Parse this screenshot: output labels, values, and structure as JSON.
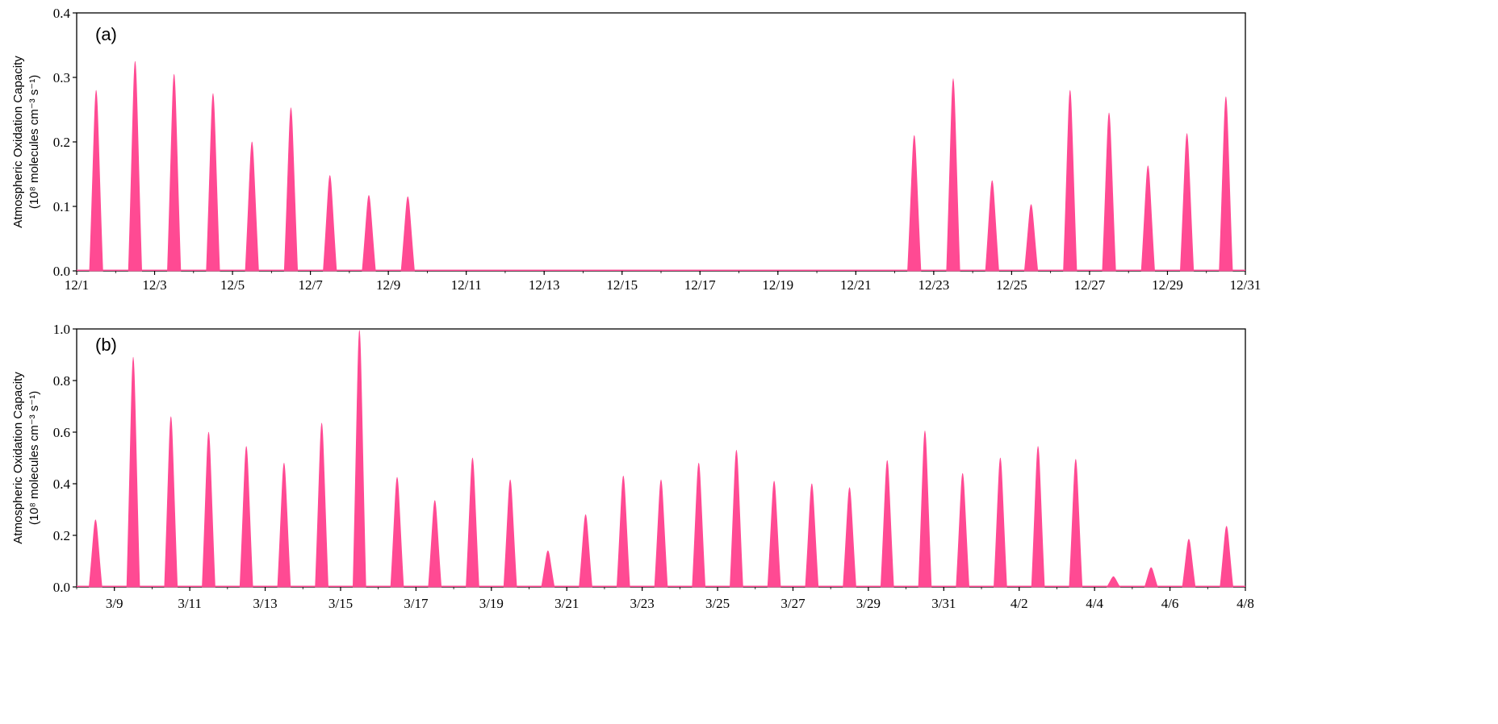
{
  "chart_data": [
    {
      "type": "area",
      "panel_label": "(a)",
      "ylabel_line1": "Atmospheric Oxidation Capacity",
      "ylabel_line2": "(10⁸ molecules cm⁻³ s⁻¹)",
      "ylim": [
        0,
        0.4
      ],
      "yticks": [
        "0.0",
        "0.1",
        "0.2",
        "0.3",
        "0.4"
      ],
      "xlim_days": [
        1,
        31
      ],
      "xticks": [
        "12/1",
        "12/3",
        "12/5",
        "12/7",
        "12/9",
        "12/11",
        "12/13",
        "12/15",
        "12/17",
        "12/19",
        "12/21",
        "12/23",
        "12/25",
        "12/27",
        "12/29",
        "12/31"
      ],
      "color": "#FF4A93",
      "daily_peaks": [
        {
          "date": "12/1",
          "peak": 0.28
        },
        {
          "date": "12/2",
          "peak": 0.325
        },
        {
          "date": "12/3",
          "peak": 0.305
        },
        {
          "date": "12/4",
          "peak": 0.275
        },
        {
          "date": "12/5",
          "peak": 0.2
        },
        {
          "date": "12/6",
          "peak": 0.253
        },
        {
          "date": "12/7",
          "peak": 0.148
        },
        {
          "date": "12/8",
          "peak": 0.117
        },
        {
          "date": "12/9",
          "peak": 0.115
        },
        {
          "date": "12/22",
          "peak": 0.21
        },
        {
          "date": "12/23",
          "peak": 0.298
        },
        {
          "date": "12/24",
          "peak": 0.14
        },
        {
          "date": "12/25",
          "peak": 0.103
        },
        {
          "date": "12/26",
          "peak": 0.28
        },
        {
          "date": "12/27",
          "peak": 0.245
        },
        {
          "date": "12/28",
          "peak": 0.163
        },
        {
          "date": "12/29",
          "peak": 0.213
        },
        {
          "date": "12/30",
          "peak": 0.27
        }
      ]
    },
    {
      "type": "area",
      "panel_label": "(b)",
      "ylabel_line1": "Atmospheric Oxidation Capacity",
      "ylabel_line2": "(10⁸ molecules cm⁻³ s⁻¹)",
      "ylim": [
        0,
        1.0
      ],
      "yticks": [
        "0.0",
        "0.2",
        "0.4",
        "0.6",
        "0.8",
        "1.0"
      ],
      "xlim_days": [
        8,
        39
      ],
      "xticks": [
        "3/9",
        "3/11",
        "3/13",
        "3/15",
        "3/17",
        "3/19",
        "3/21",
        "3/23",
        "3/25",
        "3/27",
        "3/29",
        "3/31",
        "4/2",
        "4/4",
        "4/6",
        "4/8"
      ],
      "color": "#FF4A93",
      "daily_peaks": [
        {
          "date": "3/8",
          "peak": 0.26
        },
        {
          "date": "3/9",
          "peak": 0.89
        },
        {
          "date": "3/10",
          "peak": 0.66
        },
        {
          "date": "3/11",
          "peak": 0.6
        },
        {
          "date": "3/12",
          "peak": 0.545
        },
        {
          "date": "3/13",
          "peak": 0.48
        },
        {
          "date": "3/14",
          "peak": 0.635
        },
        {
          "date": "3/15",
          "peak": 0.995
        },
        {
          "date": "3/16",
          "peak": 0.425
        },
        {
          "date": "3/17",
          "peak": 0.335
        },
        {
          "date": "3/18",
          "peak": 0.5
        },
        {
          "date": "3/19",
          "peak": 0.415
        },
        {
          "date": "3/20",
          "peak": 0.14
        },
        {
          "date": "3/21",
          "peak": 0.28
        },
        {
          "date": "3/22",
          "peak": 0.43
        },
        {
          "date": "3/23",
          "peak": 0.415
        },
        {
          "date": "3/24",
          "peak": 0.48
        },
        {
          "date": "3/25",
          "peak": 0.53
        },
        {
          "date": "3/26",
          "peak": 0.41
        },
        {
          "date": "3/27",
          "peak": 0.4
        },
        {
          "date": "3/28",
          "peak": 0.385
        },
        {
          "date": "3/29",
          "peak": 0.49
        },
        {
          "date": "3/30",
          "peak": 0.605
        },
        {
          "date": "3/31",
          "peak": 0.44
        },
        {
          "date": "4/1",
          "peak": 0.5
        },
        {
          "date": "4/2",
          "peak": 0.545
        },
        {
          "date": "4/3",
          "peak": 0.495
        },
        {
          "date": "4/4",
          "peak": 0.04
        },
        {
          "date": "4/5",
          "peak": 0.075
        },
        {
          "date": "4/6",
          "peak": 0.185
        },
        {
          "date": "4/7",
          "peak": 0.235
        }
      ]
    }
  ]
}
